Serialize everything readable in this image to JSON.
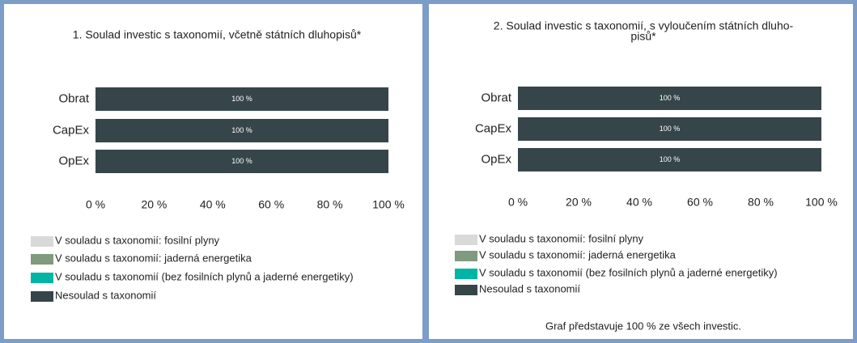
{
  "chart_data": [
    {
      "type": "stacked_barh",
      "title": [
        "1. Soulad investic s taxonomií, včetně státních dluhopisů*"
      ],
      "categories": [
        "Obrat",
        "CapEx",
        "OpEx"
      ],
      "series": [
        {
          "name": "V souladu s taxonomií: fosilní plyny",
          "color": "#d9d9d9",
          "values": [
            0,
            0,
            0
          ]
        },
        {
          "name": "V souladu s taxonomií: jaderná energetika",
          "color": "#7f9a7e",
          "values": [
            0,
            0,
            0
          ]
        },
        {
          "name": "V souladu s taxonomií (bez fosilních plynů a jaderné energetiky)",
          "color": "#00b5a5",
          "values": [
            0,
            0,
            0
          ]
        },
        {
          "name": "Nesoulad s taxonomií",
          "color": "#36454a",
          "values": [
            100,
            100,
            100
          ],
          "value_labels": [
            "100 %",
            "100 %",
            "100 %"
          ]
        }
      ],
      "xlim": [
        0,
        100
      ],
      "xticks": [
        {
          "value": 0,
          "label": "0 %"
        },
        {
          "value": 20,
          "label": "20 %"
        },
        {
          "value": 40,
          "label": "40 %"
        },
        {
          "value": 60,
          "label": "60 %"
        },
        {
          "value": 80,
          "label": "80 %"
        },
        {
          "value": 100,
          "label": "100 %"
        }
      ]
    },
    {
      "type": "stacked_barh",
      "title": [
        "2. Soulad investic s taxonomií, s vyloučením státních dluho-",
        "pisů*"
      ],
      "categories": [
        "Obrat",
        "CapEx",
        "OpEx"
      ],
      "series": [
        {
          "name": "V souladu s taxonomií: fosilní plyny",
          "color": "#d9d9d9",
          "values": [
            0,
            0,
            0
          ]
        },
        {
          "name": "V souladu s taxonomií: jaderná energetika",
          "color": "#7f9a7e",
          "values": [
            0,
            0,
            0
          ]
        },
        {
          "name": "V souladu s taxonomií (bez fosilních plynů a jaderné energetiky)",
          "color": "#00b5a5",
          "values": [
            0,
            0,
            0
          ]
        },
        {
          "name": "Nesoulad s taxonomií",
          "color": "#36454a",
          "values": [
            100,
            100,
            100
          ],
          "value_labels": [
            "100 %",
            "100 %",
            "100 %"
          ]
        }
      ],
      "xlim": [
        0,
        100
      ],
      "xticks": [
        {
          "value": 0,
          "label": "0 %"
        },
        {
          "value": 20,
          "label": "20 %"
        },
        {
          "value": 40,
          "label": "40 %"
        },
        {
          "value": 60,
          "label": "60 %"
        },
        {
          "value": 80,
          "label": "80 %"
        },
        {
          "value": 100,
          "label": "100 %"
        }
      ],
      "note": "Graf představuje 100 % ze všech investic."
    }
  ]
}
